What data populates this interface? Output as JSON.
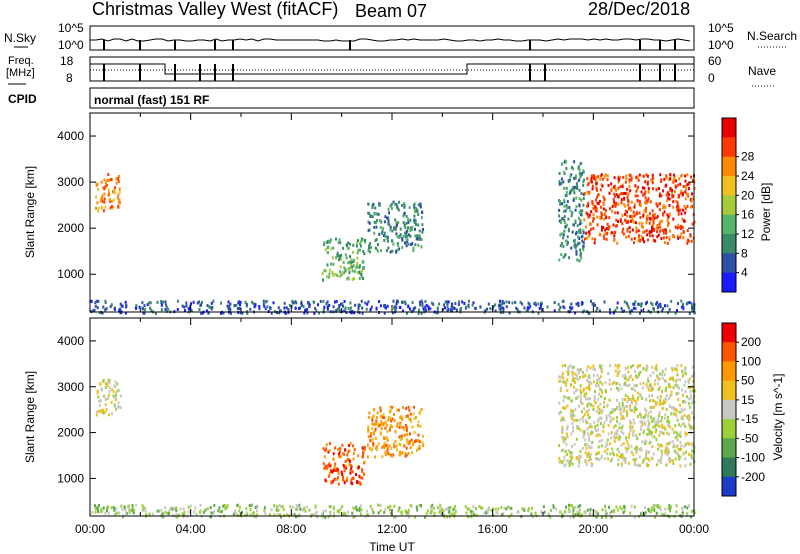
{
  "header": {
    "radar": "Christmas Valley West (fitACF)",
    "beam": "Beam 07",
    "date": "28/Dec/2018"
  },
  "status_panels": {
    "nsky_label": "N.Sky",
    "nsearch_label": "N.Search",
    "noise_ticks": [
      "10^5",
      "10^0"
    ],
    "noise_ticks_right": [
      "10^5",
      "10^0"
    ],
    "freq_label_line1": "Freq.",
    "freq_label_line2": "[MHz]",
    "freq_ticks": [
      "18",
      "8"
    ],
    "nave_label": "Nave",
    "nave_ticks": [
      "60",
      "0"
    ],
    "cpid_label": "CPID",
    "cpid_value": "normal (fast) 151 RF"
  },
  "chart_data": [
    {
      "type": "heatmap",
      "name": "power",
      "ylabel": "Slant Range [km]",
      "xlabel": "",
      "yticks": [
        "1000",
        "2000",
        "3000",
        "4000"
      ],
      "xlim_hours": [
        0,
        24
      ],
      "ylim_km": [
        180,
        4500
      ],
      "colorbar_label": "Power [dB]",
      "colorbar_ticks": [
        "4",
        "8",
        "12",
        "16",
        "20",
        "24",
        "28"
      ],
      "colorbar_colors": [
        "#1a1aff",
        "#2c4fa8",
        "#3a8a6a",
        "#55b36a",
        "#a6cc3a",
        "#f0c020",
        "#ff8a00",
        "#ff3a00",
        "#e60000"
      ],
      "regions": [
        {
          "t": [
            0.2,
            1.2
          ],
          "r": [
            2400,
            3200
          ],
          "level": 6
        },
        {
          "t": [
            9.2,
            10.9
          ],
          "r": [
            900,
            1800
          ],
          "level": 3
        },
        {
          "t": [
            11.0,
            13.2
          ],
          "r": [
            1500,
            2600
          ],
          "level": 2
        },
        {
          "t": [
            18.6,
            19.6
          ],
          "r": [
            1300,
            3500
          ],
          "level": 2
        },
        {
          "t": [
            19.6,
            24
          ],
          "r": [
            1700,
            3200
          ],
          "level": 7
        },
        {
          "t": [
            0.0,
            24
          ],
          "r": [
            180,
            450
          ],
          "level": 1
        }
      ]
    },
    {
      "type": "heatmap",
      "name": "velocity",
      "ylabel": "Slant Range [km]",
      "xlabel": "Time UT",
      "xticks": [
        "00:00",
        "04:00",
        "08:00",
        "12:00",
        "16:00",
        "20:00",
        "00:00"
      ],
      "yticks": [
        "1000",
        "2000",
        "3000",
        "4000"
      ],
      "xlim_hours": [
        0,
        24
      ],
      "ylim_km": [
        180,
        4500
      ],
      "colorbar_label": "Velocity [m s^-1]",
      "colorbar_ticks": [
        "200",
        "100",
        "50",
        "15",
        "-15",
        "-50",
        "-100",
        "-200"
      ],
      "colorbar_colors": [
        "#1a3cc8",
        "#2e7a5a",
        "#5aa84a",
        "#9ad03a",
        "#c8c8c0",
        "#f0c020",
        "#ff9900",
        "#ff5500",
        "#ee0000"
      ],
      "regions": [
        {
          "t": [
            0.2,
            1.2
          ],
          "r": [
            2400,
            3200
          ],
          "level": 4
        },
        {
          "t": [
            9.2,
            10.9
          ],
          "r": [
            900,
            1800
          ],
          "level": 7
        },
        {
          "t": [
            11.0,
            13.2
          ],
          "r": [
            1500,
            2600
          ],
          "level": 6
        },
        {
          "t": [
            18.6,
            24
          ],
          "r": [
            1300,
            3500
          ],
          "level": 4
        },
        {
          "t": [
            0.0,
            24
          ],
          "r": [
            180,
            450
          ],
          "level": 3
        }
      ]
    }
  ]
}
